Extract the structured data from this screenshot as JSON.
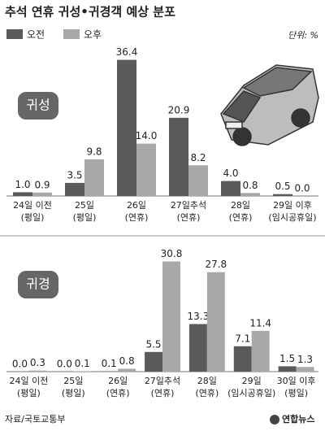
{
  "title": "추석 연휴 귀성•귀경객 예상 분포",
  "unit": "단위: %",
  "source": "자료/국토교통부",
  "credit": "연합뉴스",
  "chart_data": [
    {
      "type": "bar",
      "title": "귀성",
      "categories": [
        [
          "24일 이전",
          "(평일)"
        ],
        [
          "25일",
          "(평일)"
        ],
        [
          "26일",
          "(연휴)"
        ],
        [
          "27일추석",
          "(연휴)"
        ],
        [
          "28일",
          "(연휴)"
        ],
        [
          "29일 이후",
          "(임시공휴일)"
        ]
      ],
      "series": [
        {
          "name": "오전",
          "color": "#5a5a5a",
          "values": [
            1.0,
            3.5,
            36.4,
            20.9,
            4.0,
            0.5
          ],
          "value_labels": [
            "1.0",
            "3.5",
            "36.4",
            "20.9",
            "4.0",
            "0.5"
          ]
        },
        {
          "name": "오후",
          "color": "#a8a8a8",
          "values": [
            0.9,
            9.8,
            14.0,
            8.2,
            0.8,
            0.0
          ],
          "value_labels": [
            "0.9",
            "9.8",
            "14.0",
            "8.2",
            "0.8",
            "0.0"
          ]
        }
      ]
    },
    {
      "type": "bar",
      "title": "귀경",
      "categories": [
        [
          "24일 이전",
          "(평일)"
        ],
        [
          "25일",
          "(평일)"
        ],
        [
          "26일",
          "(연휴)"
        ],
        [
          "27일추석",
          "(연휴)"
        ],
        [
          "28일",
          "(연휴)"
        ],
        [
          "29일",
          "(임시공휴일)"
        ],
        [
          "30일 이후",
          "(평일)"
        ]
      ],
      "series": [
        {
          "color": "#5a5a5a",
          "values": [
            0.0,
            0.0,
            0.1,
            5.5,
            13.3,
            7.1,
            1.5
          ],
          "value_labels": [
            "0.0",
            "0.0",
            "0.1",
            "5.5",
            "13.3",
            "7.1",
            "1.5"
          ]
        },
        {
          "color": "#a8a8a8",
          "values": [
            0.3,
            0.1,
            0.8,
            30.8,
            27.8,
            11.4,
            1.3
          ],
          "value_labels": [
            "0.3",
            "0.1",
            "0.8",
            "30.8",
            "27.8",
            "11.4",
            "1.3"
          ]
        }
      ]
    }
  ]
}
